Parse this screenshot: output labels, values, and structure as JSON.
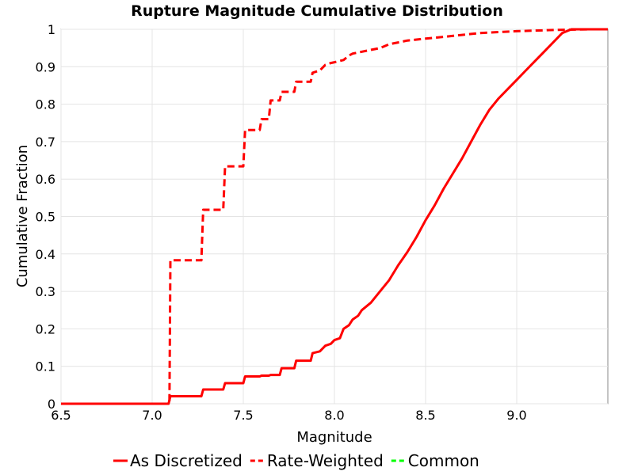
{
  "chart_data": {
    "type": "line",
    "title": "Rupture Magnitude Cumulative Distribution",
    "xlabel": "Magnitude",
    "ylabel": "Cumulative Fraction",
    "xlim": [
      6.5,
      9.5
    ],
    "ylim": [
      0,
      1
    ],
    "xticks": [
      "6.5",
      "7.0",
      "7.5",
      "8.0",
      "8.5",
      "9.0"
    ],
    "yticks": [
      "0",
      "0.1",
      "0.2",
      "0.3",
      "0.4",
      "0.5",
      "0.6",
      "0.7",
      "0.8",
      "0.9",
      "1"
    ],
    "grid": true,
    "legend_position": "bottom",
    "series": [
      {
        "name": "As Discretized",
        "color": "#ff0000",
        "dash": "solid",
        "x": [
          6.5,
          7.09,
          7.1,
          7.27,
          7.28,
          7.39,
          7.4,
          7.5,
          7.51,
          7.59,
          7.6,
          7.64,
          7.65,
          7.7,
          7.71,
          7.78,
          7.79,
          7.87,
          7.88,
          7.92,
          7.95,
          7.98,
          8.0,
          8.03,
          8.05,
          8.08,
          8.1,
          8.13,
          8.15,
          8.2,
          8.25,
          8.3,
          8.35,
          8.4,
          8.45,
          8.5,
          8.55,
          8.6,
          8.65,
          8.7,
          8.75,
          8.8,
          8.85,
          8.9,
          8.95,
          9.0,
          9.05,
          9.1,
          9.15,
          9.2,
          9.25,
          9.3,
          9.35,
          9.4,
          9.45,
          9.5
        ],
        "y": [
          0.0,
          0.0,
          0.02,
          0.02,
          0.038,
          0.038,
          0.055,
          0.055,
          0.073,
          0.073,
          0.075,
          0.075,
          0.077,
          0.077,
          0.095,
          0.095,
          0.115,
          0.115,
          0.135,
          0.14,
          0.155,
          0.16,
          0.17,
          0.175,
          0.2,
          0.21,
          0.225,
          0.235,
          0.25,
          0.27,
          0.3,
          0.33,
          0.37,
          0.405,
          0.445,
          0.49,
          0.53,
          0.575,
          0.615,
          0.655,
          0.7,
          0.745,
          0.785,
          0.815,
          0.84,
          0.865,
          0.89,
          0.915,
          0.94,
          0.965,
          0.99,
          1.0,
          1.0,
          1.0,
          1.0,
          1.0
        ]
      },
      {
        "name": "Rate-Weighted",
        "color": "#ff0000",
        "dash": "dashed",
        "x": [
          6.5,
          7.095,
          7.1,
          7.27,
          7.28,
          7.39,
          7.4,
          7.5,
          7.51,
          7.59,
          7.6,
          7.64,
          7.65,
          7.7,
          7.71,
          7.78,
          7.79,
          7.87,
          7.88,
          7.92,
          7.95,
          7.98,
          8.0,
          8.05,
          8.08,
          8.1,
          8.2,
          8.25,
          8.3,
          8.35,
          8.4,
          8.5,
          8.6,
          8.7,
          8.8,
          9.0,
          9.2,
          9.4,
          9.5
        ],
        "y": [
          0.0,
          0.0,
          0.383,
          0.383,
          0.518,
          0.518,
          0.634,
          0.634,
          0.731,
          0.731,
          0.76,
          0.76,
          0.81,
          0.81,
          0.833,
          0.833,
          0.86,
          0.86,
          0.884,
          0.89,
          0.905,
          0.91,
          0.912,
          0.918,
          0.93,
          0.935,
          0.945,
          0.95,
          0.96,
          0.965,
          0.97,
          0.975,
          0.98,
          0.985,
          0.99,
          0.995,
          0.998,
          1.0,
          1.0
        ]
      },
      {
        "name": "Common",
        "color": "#00ff00",
        "dash": "dashed",
        "x": [],
        "y": []
      }
    ]
  }
}
